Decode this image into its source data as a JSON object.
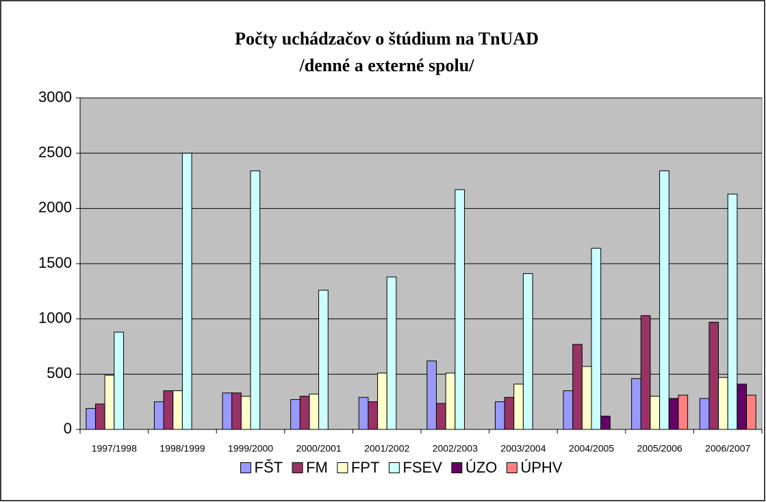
{
  "chart_data": {
    "type": "bar",
    "title": "Počty uchádzačov o štúdium na TnUAD",
    "subtitle": "/denné a externé spolu/",
    "categories": [
      "1997/1998",
      "1998/1999",
      "1999/2000",
      "2000/2001",
      "2001/2002",
      "2002/2003",
      "2003/2004",
      "2004/2005",
      "2005/2006",
      "2006/2007"
    ],
    "series": [
      {
        "name": "FŠT",
        "color": "#9999ff",
        "values": [
          190,
          250,
          330,
          270,
          290,
          620,
          250,
          350,
          460,
          280
        ]
      },
      {
        "name": "FM",
        "color": "#993366",
        "values": [
          230,
          350,
          330,
          300,
          250,
          235,
          290,
          770,
          1030,
          970
        ]
      },
      {
        "name": "FPT",
        "color": "#ffffcc",
        "values": [
          490,
          350,
          300,
          320,
          510,
          510,
          410,
          570,
          300,
          470
        ]
      },
      {
        "name": "FSEV",
        "color": "#ccffff",
        "values": [
          880,
          2500,
          2340,
          1260,
          1380,
          2170,
          1410,
          1640,
          2340,
          2130
        ]
      },
      {
        "name": "ÚZO",
        "color": "#660066",
        "values": [
          0,
          0,
          0,
          0,
          0,
          0,
          0,
          120,
          280,
          410
        ]
      },
      {
        "name": "ÚPHV",
        "color": "#ff8080",
        "values": [
          0,
          0,
          0,
          0,
          0,
          0,
          0,
          0,
          310,
          310
        ]
      }
    ],
    "ylim": [
      0,
      3000
    ],
    "yticks": [
      0,
      500,
      1000,
      1500,
      2000,
      2500,
      3000
    ],
    "grid": true,
    "legend": "bottom",
    "plot_background": "#c0c0c0"
  }
}
